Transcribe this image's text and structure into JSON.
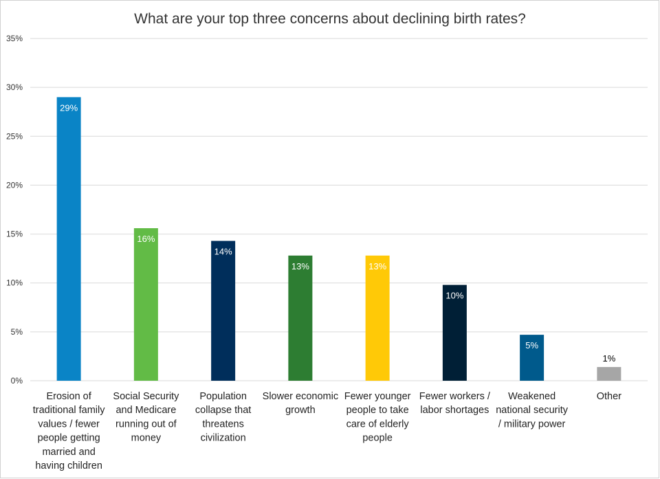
{
  "chart_data": {
    "type": "bar",
    "title": "What are your top three concerns about declining birth rates?",
    "xlabel": "",
    "ylabel": "",
    "ylim": [
      0,
      35
    ],
    "yticks": [
      0,
      5,
      10,
      15,
      20,
      25,
      30,
      35
    ],
    "ytick_labels": [
      "0%",
      "5%",
      "10%",
      "15%",
      "20%",
      "25%",
      "30%",
      "35%"
    ],
    "grid": true,
    "legend": "none",
    "categories": [
      [
        "Erosion of",
        "traditional family",
        "values / fewer",
        "people getting",
        "married and",
        "having children"
      ],
      [
        "Social Security",
        "and Medicare",
        "running out of",
        "money"
      ],
      [
        "Population",
        "collapse that",
        "threatens",
        "civilization"
      ],
      [
        "Slower economic",
        "growth"
      ],
      [
        "Fewer younger",
        "people to take",
        "care of elderly",
        "people"
      ],
      [
        "Fewer workers /",
        "labor shortages"
      ],
      [
        "Weakened",
        "national security",
        "/ military power"
      ],
      [
        "Other"
      ]
    ],
    "values": [
      29,
      15.6,
      14.3,
      12.8,
      12.8,
      9.8,
      4.7,
      1.4
    ],
    "data_labels": [
      "29%",
      "16%",
      "14%",
      "13%",
      "13%",
      "10%",
      "5%",
      "1%"
    ],
    "colors": [
      "#0a84c6",
      "#62bb46",
      "#002e5b",
      "#2d7d32",
      "#ffc907",
      "#001f36",
      "#005a8c",
      "#a6a6a6"
    ],
    "label_colors": [
      "#ffffff",
      "#ffffff",
      "#ffffff",
      "#ffffff",
      "#ffffff",
      "#ffffff",
      "#ffffff",
      "#000000"
    ]
  }
}
